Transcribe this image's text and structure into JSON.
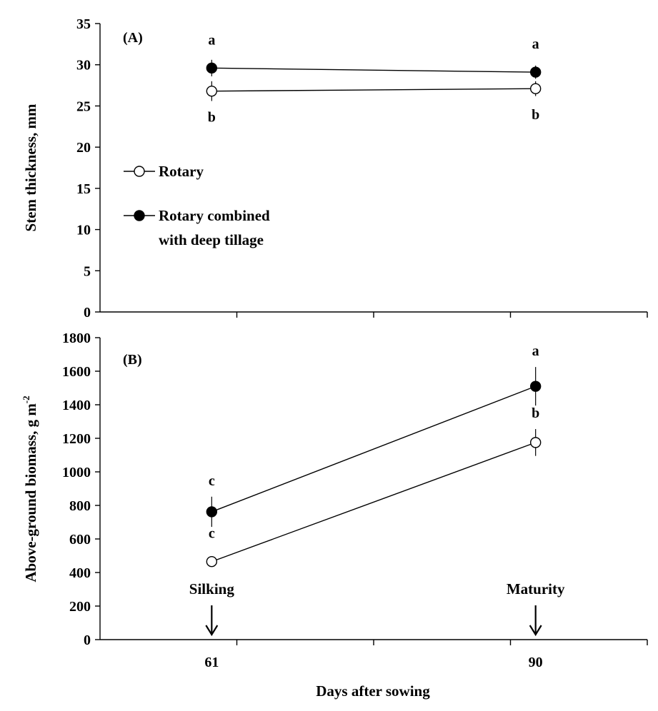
{
  "chart_data": [
    {
      "panel_label": "(A)",
      "type": "line",
      "ylabel": "Stem thickness, mm",
      "ylim": [
        0,
        35
      ],
      "yticks": [
        0,
        5,
        10,
        15,
        20,
        25,
        30,
        35
      ],
      "xlim": [
        51,
        100
      ],
      "series": [
        {
          "name": "Rotary",
          "marker": "open-circle",
          "x": [
            61,
            90
          ],
          "y": [
            26.8,
            27.1
          ],
          "error": [
            1.2,
            0.9
          ],
          "letters": [
            "b",
            "b"
          ],
          "letter_position": "below"
        },
        {
          "name": "Rotary combined with deep tillage",
          "marker": "filled-circle",
          "x": [
            61,
            90
          ],
          "y": [
            29.6,
            29.1
          ],
          "error": [
            1.0,
            0.8
          ],
          "letters": [
            "a",
            "a"
          ],
          "letter_position": "above"
        }
      ],
      "legend": {
        "placement": "center-left",
        "lines": [
          [
            "Rotary"
          ],
          [
            "Rotary combined",
            "with deep tillage"
          ]
        ]
      }
    },
    {
      "panel_label": "(B)",
      "type": "line",
      "ylabel": "Above-ground biomass, g m",
      "ylabel_superscript": "-2",
      "ylim": [
        0,
        1800
      ],
      "yticks": [
        0,
        200,
        400,
        600,
        800,
        1000,
        1200,
        1400,
        1600,
        1800
      ],
      "xlim": [
        51,
        100
      ],
      "xticks": [
        61,
        90
      ],
      "xlabel": "Days after sowing",
      "series": [
        {
          "name": "Rotary",
          "marker": "open-circle",
          "x": [
            61,
            90
          ],
          "y": [
            465,
            1175
          ],
          "error": [
            30,
            80
          ],
          "letters": [
            "c",
            "b"
          ],
          "letter_position": "above"
        },
        {
          "name": "Rotary combined with deep tillage",
          "marker": "filled-circle",
          "x": [
            61,
            90
          ],
          "y": [
            762,
            1510
          ],
          "error": [
            90,
            115
          ],
          "letters": [
            "c",
            "a"
          ],
          "letter_position": "above"
        }
      ],
      "annotations": [
        {
          "text": "Silking",
          "x": 61,
          "arrow": "down"
        },
        {
          "text": "Maturity",
          "x": 90,
          "arrow": "down"
        }
      ]
    }
  ],
  "colors": {
    "line": "#000000",
    "open_fill": "#ffffff",
    "filled_fill": "#000000"
  }
}
